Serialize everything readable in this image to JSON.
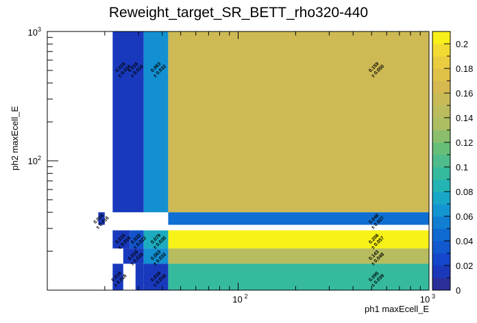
{
  "chart_data": {
    "type": "heatmap",
    "title": "Reweight_target_SR_BETT_rho320-440",
    "xlabel": "ph1 maxEcell_E",
    "ylabel": "ph2 maxEcell_E",
    "x_scale": "log",
    "y_scale": "log",
    "xlim": [
      10,
      1000
    ],
    "ylim": [
      10,
      1000
    ],
    "x_tick_labels": [
      {
        "base": "10",
        "exp": "2"
      },
      {
        "base": "10",
        "exp": "3"
      }
    ],
    "y_tick_labels": [
      {
        "base": "10",
        "exp": "2"
      },
      {
        "base": "10",
        "exp": "3"
      }
    ],
    "z_range": [
      0,
      0.21
    ],
    "z_tick_labels": [
      "0",
      "0.02",
      "0.04",
      "0.06",
      "0.08",
      "0.1",
      "0.12",
      "0.14",
      "0.16",
      "0.18",
      "0.2"
    ],
    "grid": false,
    "colorbar": "right",
    "cells": [
      {
        "x": [
          22,
          32
        ],
        "y": [
          40,
          1000
        ],
        "value": 0.016,
        "error": 0.016,
        "labels": [
          {
            "text": "0.016\n± 0.016",
            "x": 24.5,
            "y": 520
          },
          {
            "text": "0.016\n± 0.016",
            "x": 28.5,
            "y": 520
          }
        ]
      },
      {
        "x": [
          32,
          43
        ],
        "y": [
          40,
          1000
        ],
        "value": 0.063,
        "error": 0.032,
        "labels": [
          {
            "text": "0.063\n± 0.032",
            "x": 37.5,
            "y": 520
          }
        ]
      },
      {
        "x": [
          43,
          1000
        ],
        "y": [
          40,
          1000
        ],
        "value": 0.159,
        "error": 0.05,
        "labels": [
          {
            "text": "0.159\n± 0.050",
            "x": 520,
            "y": 520
          }
        ]
      },
      {
        "x": [
          18.5,
          20
        ],
        "y": [
          32,
          40
        ],
        "value": 0.016,
        "error": 0.016,
        "labels": [
          {
            "text": "0.016\n± 0.016",
            "x": 18.8,
            "y": 35
          }
        ]
      },
      {
        "x": [
          43,
          1000
        ],
        "y": [
          32,
          40
        ],
        "value": 0.048,
        "error": 0.027,
        "labels": [
          {
            "text": "0.048\n± 0.027",
            "x": 520,
            "y": 35
          }
        ]
      },
      {
        "x": [
          22,
          27
        ],
        "y": [
          21,
          29
        ],
        "value": 0.016,
        "error": 0.016,
        "labels": [
          {
            "text": "0.016\n± 0.016",
            "x": 24.5,
            "y": 24.5
          }
        ]
      },
      {
        "x": [
          27,
          32
        ],
        "y": [
          21,
          29
        ],
        "value": 0.032,
        "error": 0.022,
        "labels": [
          {
            "text": "0.032\n± 0.022",
            "x": 29.5,
            "y": 24.5
          }
        ]
      },
      {
        "x": [
          32,
          43
        ],
        "y": [
          21,
          29
        ],
        "value": 0.079,
        "error": 0.035,
        "labels": [
          {
            "text": "0.079\n± 0.035",
            "x": 37.5,
            "y": 24.5
          }
        ]
      },
      {
        "x": [
          43,
          1000
        ],
        "y": [
          21,
          29
        ],
        "value": 0.206,
        "error": 0.057,
        "labels": [
          {
            "text": "0.206\n± 0.057",
            "x": 520,
            "y": 24.5
          }
        ]
      },
      {
        "x": [
          25,
          32
        ],
        "y": [
          16,
          21
        ],
        "value": 0.016,
        "error": 0.016,
        "labels": [
          {
            "text": "0.016\n± 0.016",
            "x": 28.5,
            "y": 18.3
          }
        ]
      },
      {
        "x": [
          32,
          43
        ],
        "y": [
          16,
          21
        ],
        "value": 0.063,
        "error": 0.032,
        "labels": [
          {
            "text": "0.063\n± 0.032",
            "x": 37.5,
            "y": 18.3
          }
        ]
      },
      {
        "x": [
          43,
          1000
        ],
        "y": [
          16,
          21
        ],
        "value": 0.143,
        "error": 0.048,
        "labels": [
          {
            "text": "0.143\n± 0.048",
            "x": 520,
            "y": 18.3
          }
        ]
      },
      {
        "x": [
          22,
          25
        ],
        "y": [
          10,
          16
        ],
        "value": 0.016,
        "error": 0.016,
        "labels": [
          {
            "text": "0.016\n± 0.016",
            "x": 23.3,
            "y": 12.5
          }
        ]
      },
      {
        "x": [
          29,
          32
        ],
        "y": [
          10,
          16
        ],
        "value": 0.016,
        "error": 0.016,
        "labels": []
      },
      {
        "x": [
          32,
          43
        ],
        "y": [
          10,
          16
        ],
        "value": 0.016,
        "error": 0.016,
        "labels": [
          {
            "text": "0.016\n± 0.016",
            "x": 37.5,
            "y": 12.5
          }
        ]
      },
      {
        "x": [
          43,
          1000
        ],
        "y": [
          10,
          16
        ],
        "value": 0.095,
        "error": 0.039,
        "labels": [
          {
            "text": "0.095\n± 0.039",
            "x": 520,
            "y": 12.5
          }
        ]
      }
    ]
  }
}
